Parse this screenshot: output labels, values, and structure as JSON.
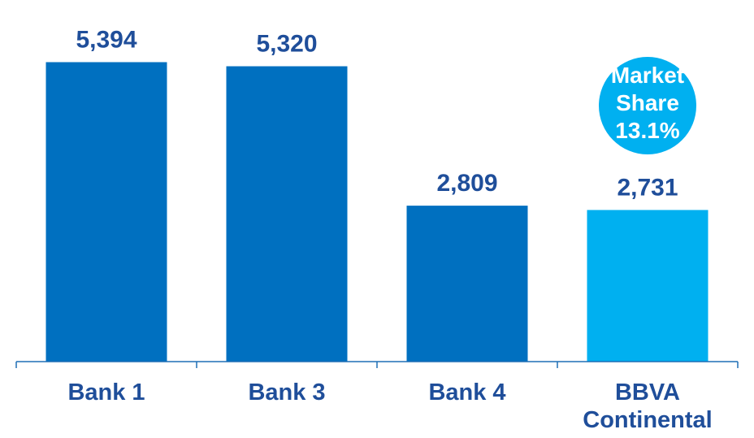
{
  "chart_data": {
    "type": "bar",
    "categories": [
      "Bank 1",
      "Bank 3",
      "Bank 4",
      "BBVA Continental"
    ],
    "category_lines": [
      [
        "Bank 1"
      ],
      [
        "Bank 3"
      ],
      [
        "Bank 4"
      ],
      [
        "BBVA",
        "Continental"
      ]
    ],
    "values": [
      5394,
      5320,
      2809,
      2731
    ],
    "value_labels": [
      "5,394",
      "5,320",
      "2,809",
      "2,731"
    ],
    "title": "",
    "xlabel": "",
    "ylabel": "",
    "ylim": [
      0,
      6000
    ],
    "grid": false,
    "legend": "none",
    "colors": {
      "default_bar": "#0070c0",
      "highlight_bar": "#00b0f0",
      "axis": "#1f6fb5",
      "value_label": "#1f4e9a",
      "category_label": "#1f4e9a",
      "bubble_fill": "#00b0f0",
      "bubble_text": "#ffffff"
    },
    "highlight_index": 3,
    "annotation": {
      "lines": [
        "Market",
        "Share",
        "13.1%"
      ],
      "attached_to": "BBVA Continental",
      "shape": "circle"
    }
  }
}
